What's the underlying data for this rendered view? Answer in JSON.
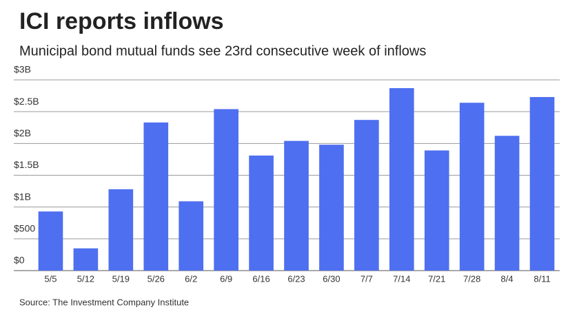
{
  "chart_data": {
    "type": "bar",
    "title": "ICI reports inflows",
    "subtitle": "Municipal bond mutual funds see 23rd consecutive week of inflows",
    "source": "Source: The Investment Company Institute",
    "categories": [
      "5/5",
      "5/12",
      "5/19",
      "5/26",
      "6/2",
      "6/9",
      "6/16",
      "6/23",
      "6/30",
      "7/7",
      "7/14",
      "7/21",
      "7/28",
      "8/4",
      "8/11"
    ],
    "values": [
      930,
      350,
      1280,
      2330,
      1090,
      2540,
      1810,
      2040,
      1980,
      2370,
      2870,
      1890,
      2640,
      2120,
      2730
    ],
    "color": "#4e6ff0",
    "ylim": [
      0,
      3000
    ],
    "yticks": [
      {
        "value": 0,
        "label": "$0"
      },
      {
        "value": 500,
        "label": "$500"
      },
      {
        "value": 1000,
        "label": "$1B"
      },
      {
        "value": 1500,
        "label": "$1.5B"
      },
      {
        "value": 2000,
        "label": "$2B"
      },
      {
        "value": 2500,
        "label": "$2.5B"
      },
      {
        "value": 3000,
        "label": "$3B"
      }
    ],
    "grid": true
  }
}
